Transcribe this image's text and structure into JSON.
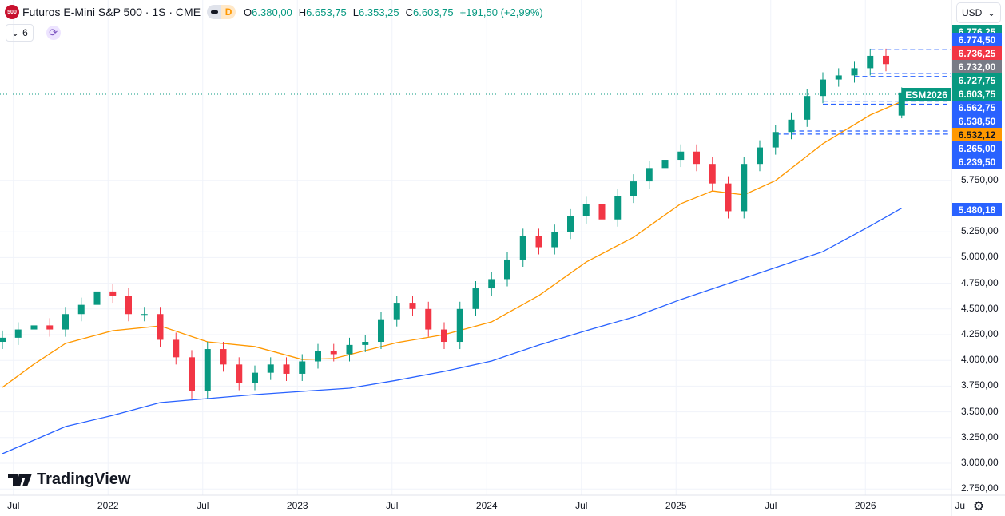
{
  "header": {
    "symbol_logo": "500",
    "title": "Futuros E-Mini S&P 500 · 1S · CME",
    "pill_letter": "D",
    "ohlc": [
      {
        "k": "O",
        "v": "6.380,00"
      },
      {
        "k": "H",
        "v": "6.653,75"
      },
      {
        "k": "L",
        "v": "6.353,25"
      },
      {
        "k": "C",
        "v": "6.603,75"
      }
    ],
    "change": "+191,50 (+2,99%)"
  },
  "indicators": {
    "count": "6",
    "chevron": "⌄",
    "refresh_icon": "⟳"
  },
  "currency": {
    "selected": "USD",
    "chevron": "⌄"
  },
  "series_tag": "ESM2026",
  "branding": "TradingView",
  "colors": {
    "up": "#089981",
    "down": "#f23645",
    "ma_fast": "#ff9800",
    "ma_slow": "#2962ff",
    "levels": "#2962ff",
    "gray": "#787b86"
  },
  "price_tags": [
    {
      "label": "6.776,25",
      "color": "#089981"
    },
    {
      "label": "6.774,50",
      "color": "#2962ff"
    },
    {
      "label": "6.736,25",
      "color": "#f23645"
    },
    {
      "label": "6.732,00",
      "color": "#787b86"
    },
    {
      "label": "6.727,75",
      "color": "#089981"
    },
    {
      "label": "6.603,75",
      "color": "#089981"
    },
    {
      "label": "6.562,75",
      "color": "#2962ff"
    },
    {
      "label": "6.538,50",
      "color": "#2962ff"
    },
    {
      "label": "6.532,12",
      "color": "#ff9800"
    },
    {
      "label": "6.265,00",
      "color": "#2962ff"
    },
    {
      "label": "6.239,50",
      "color": "#2962ff"
    },
    {
      "label": "5.480,18",
      "color": "#2962ff"
    }
  ],
  "chart_data": {
    "type": "candlestick",
    "interval": "1 week (shown aggregated)",
    "y_ticks": [
      {
        "v": 5750,
        "l": "5.750,00"
      },
      {
        "v": 5250,
        "l": "5.250,00"
      },
      {
        "v": 5000,
        "l": "5.000,00"
      },
      {
        "v": 4750,
        "l": "4.750,00"
      },
      {
        "v": 4500,
        "l": "4.500,00"
      },
      {
        "v": 4250,
        "l": "4.250,00"
      },
      {
        "v": 4000,
        "l": "4.000,00"
      },
      {
        "v": 3750,
        "l": "3.750,00"
      },
      {
        "v": 3500,
        "l": "3.500,00"
      },
      {
        "v": 3250,
        "l": "3.250,00"
      },
      {
        "v": 3000,
        "l": "3.000,00"
      },
      {
        "v": 2750,
        "l": "2.750,00"
      }
    ],
    "x_ticks": [
      {
        "m": "2021-07",
        "l": "Jul"
      },
      {
        "m": "2022-01",
        "l": "2022"
      },
      {
        "m": "2022-07",
        "l": "Jul"
      },
      {
        "m": "2023-01",
        "l": "2023"
      },
      {
        "m": "2023-07",
        "l": "Jul"
      },
      {
        "m": "2024-01",
        "l": "2024"
      },
      {
        "m": "2024-07",
        "l": "Jul"
      },
      {
        "m": "2025-01",
        "l": "2025"
      },
      {
        "m": "2025-07",
        "l": "Jul"
      },
      {
        "m": "2026-01",
        "l": "2026"
      },
      {
        "m": "2026-07",
        "l": "Ju"
      }
    ],
    "start_month": "2021-06",
    "closes": [
      4220,
      4300,
      4340,
      4300,
      4450,
      4540,
      4670,
      4630,
      4450,
      4450,
      4200,
      4030,
      3700,
      4110,
      3960,
      3780,
      3880,
      3960,
      3870,
      3990,
      4090,
      4060,
      4150,
      4180,
      4400,
      4560,
      4500,
      4300,
      4180,
      4500,
      4700,
      4790,
      4980,
      5210,
      5100,
      5250,
      5400,
      5520,
      5370,
      5600,
      5740,
      5870,
      5950,
      6030,
      5910,
      5720,
      5450,
      5910,
      6070,
      6220,
      6340,
      6570,
      6730,
      6770,
      6840,
      6960,
      6880,
      6603.75
    ],
    "last_bar": {
      "open": 6380,
      "high": 6653.75,
      "low": 6353.25,
      "close": 6603.75
    },
    "last_price": 6603.75,
    "ma_fast": [
      [
        "2021-06",
        3738
      ],
      [
        "2021-08",
        3963
      ],
      [
        "2021-10",
        4165
      ],
      [
        "2022-01",
        4289
      ],
      [
        "2022-04",
        4335
      ],
      [
        "2022-07",
        4180
      ],
      [
        "2022-10",
        4134
      ],
      [
        "2023-01",
        4009
      ],
      [
        "2023-03",
        4017
      ],
      [
        "2023-07",
        4172
      ],
      [
        "2023-10",
        4250
      ],
      [
        "2024-01",
        4374
      ],
      [
        "2024-04",
        4630
      ],
      [
        "2024-07",
        4956
      ],
      [
        "2024-10",
        5197
      ],
      [
        "2025-01",
        5523
      ],
      [
        "2025-03",
        5647
      ],
      [
        "2025-05",
        5609
      ],
      [
        "2025-07",
        5748
      ],
      [
        "2025-10",
        6106
      ],
      [
        "2026-01",
        6385
      ],
      [
        "2026-03",
        6517
      ]
    ],
    "ma_slow": [
      [
        "2021-06",
        3093
      ],
      [
        "2021-10",
        3357
      ],
      [
        "2022-01",
        3466
      ],
      [
        "2022-04",
        3590
      ],
      [
        "2022-07",
        3629
      ],
      [
        "2022-10",
        3668
      ],
      [
        "2023-01",
        3699
      ],
      [
        "2023-04",
        3730
      ],
      [
        "2023-07",
        3807
      ],
      [
        "2023-10",
        3893
      ],
      [
        "2024-01",
        3994
      ],
      [
        "2024-04",
        4149
      ],
      [
        "2024-07",
        4289
      ],
      [
        "2024-10",
        4421
      ],
      [
        "2025-01",
        4592
      ],
      [
        "2025-04",
        4747
      ],
      [
        "2025-07",
        4902
      ],
      [
        "2025-10",
        5057
      ],
      [
        "2026-01",
        5306
      ],
      [
        "2026-03",
        5480.18
      ]
    ],
    "levels": [
      {
        "from": "2026-01",
        "price": 7020
      },
      {
        "from": "2026-01",
        "price": 6790
      },
      {
        "from": "2025-12",
        "price": 6760
      },
      {
        "from": "2025-10",
        "price": 6520
      },
      {
        "from": "2025-10",
        "price": 6490
      },
      {
        "from": "2025-08",
        "price": 6230
      },
      {
        "from": "2025-07",
        "price": 6200
      }
    ]
  }
}
